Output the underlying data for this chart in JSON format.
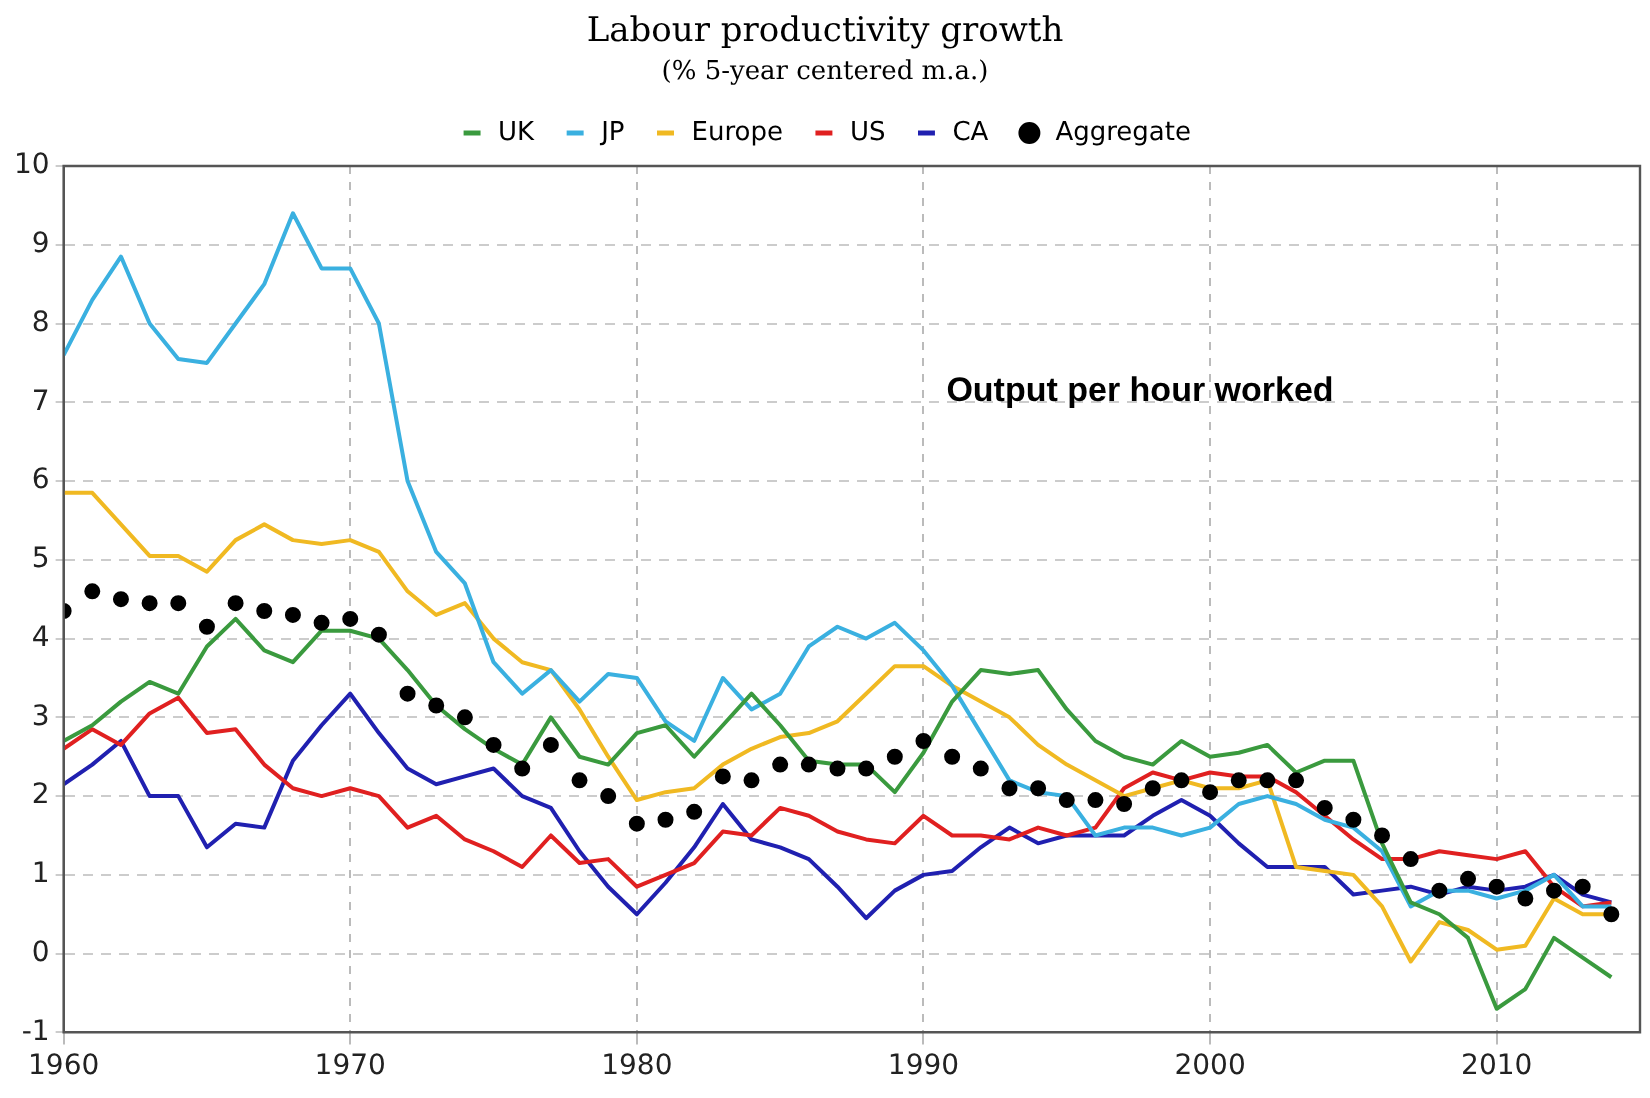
{
  "chart_data": {
    "type": "line",
    "title": "Labour productivity growth",
    "subtitle": "(% 5-year centered m.a.)",
    "annotations": [
      "Output per hour worked"
    ],
    "x": [
      1960,
      1961,
      1962,
      1963,
      1964,
      1965,
      1966,
      1967,
      1968,
      1969,
      1970,
      1971,
      1972,
      1973,
      1974,
      1975,
      1976,
      1977,
      1978,
      1979,
      1980,
      1981,
      1982,
      1983,
      1984,
      1985,
      1986,
      1987,
      1988,
      1989,
      1990,
      1991,
      1992,
      1993,
      1994,
      1995,
      1996,
      1997,
      1998,
      1999,
      2000,
      2001,
      2002,
      2003,
      2004,
      2005,
      2006,
      2007,
      2008,
      2009,
      2010,
      2011,
      2012,
      2013,
      2014
    ],
    "xlim": [
      1960,
      2015
    ],
    "xticks": [
      1960,
      1970,
      1980,
      1990,
      2000,
      2010
    ],
    "ylim": [
      -1,
      10
    ],
    "yticks": [
      -1,
      0,
      1,
      2,
      3,
      4,
      5,
      6,
      7,
      8,
      9,
      10
    ],
    "grid": true,
    "legend": "top",
    "marker": "none",
    "line_style": "solid",
    "series": [
      {
        "name": "UK",
        "color": "#3a9a3e",
        "values": [
          2.7,
          2.9,
          3.2,
          3.45,
          3.3,
          3.9,
          4.25,
          3.85,
          3.7,
          4.1,
          4.1,
          4.0,
          3.6,
          3.15,
          2.85,
          2.6,
          2.4,
          3.0,
          2.5,
          2.4,
          2.8,
          2.9,
          2.5,
          2.9,
          3.3,
          2.9,
          2.45,
          2.4,
          2.4,
          2.05,
          2.55,
          3.2,
          3.6,
          3.55,
          3.6,
          3.1,
          2.7,
          2.5,
          2.4,
          2.7,
          2.5,
          2.55,
          2.65,
          2.3,
          2.45,
          2.45,
          1.4,
          0.65,
          0.5,
          0.2,
          -0.7,
          -0.45,
          0.2,
          -0.05,
          -0.3
        ]
      },
      {
        "name": "JP",
        "color": "#3ab0e0",
        "values": [
          7.6,
          8.3,
          8.85,
          8.0,
          7.55,
          7.5,
          8.0,
          8.5,
          9.4,
          8.7,
          8.7,
          8.0,
          6.0,
          5.1,
          4.7,
          3.7,
          3.3,
          3.6,
          3.2,
          3.55,
          3.5,
          2.95,
          2.7,
          3.5,
          3.1,
          3.3,
          3.9,
          4.15,
          4.0,
          4.2,
          3.85,
          3.4,
          2.8,
          2.2,
          2.05,
          2.0,
          1.5,
          1.6,
          1.6,
          1.5,
          1.6,
          1.9,
          2.0,
          1.9,
          1.7,
          1.6,
          1.3,
          0.6,
          0.8,
          0.8,
          0.7,
          0.8,
          1.0,
          0.6,
          0.6
        ]
      },
      {
        "name": "Europe",
        "color": "#f0b922",
        "values": [
          5.85,
          5.85,
          5.45,
          5.05,
          5.05,
          4.85,
          5.25,
          5.45,
          5.25,
          5.2,
          5.25,
          5.1,
          4.6,
          4.3,
          4.45,
          4.0,
          3.7,
          3.6,
          3.1,
          2.5,
          1.95,
          2.05,
          2.1,
          2.4,
          2.6,
          2.75,
          2.8,
          2.95,
          3.3,
          3.65,
          3.65,
          3.4,
          3.2,
          3.0,
          2.65,
          2.4,
          2.2,
          2.0,
          2.1,
          2.2,
          2.1,
          2.1,
          2.2,
          1.1,
          1.05,
          1.0,
          0.6,
          -0.1,
          0.4,
          0.3,
          0.05,
          0.1,
          0.7,
          0.5,
          0.5
        ]
      },
      {
        "name": "US",
        "color": "#e02020",
        "values": [
          2.6,
          2.85,
          2.65,
          3.05,
          3.25,
          2.8,
          2.85,
          2.4,
          2.1,
          2.0,
          2.1,
          2.0,
          1.6,
          1.75,
          1.45,
          1.3,
          1.1,
          1.5,
          1.15,
          1.2,
          0.85,
          1.0,
          1.15,
          1.55,
          1.5,
          1.85,
          1.75,
          1.55,
          1.45,
          1.4,
          1.75,
          1.5,
          1.5,
          1.45,
          1.6,
          1.5,
          1.6,
          2.1,
          2.3,
          2.2,
          2.3,
          2.25,
          2.25,
          2.05,
          1.75,
          1.45,
          1.2,
          1.2,
          1.3,
          1.25,
          1.2,
          1.3,
          0.85,
          0.6,
          0.65
        ]
      },
      {
        "name": "CA",
        "color": "#2020b0",
        "values": [
          2.15,
          2.4,
          2.7,
          2.0,
          2.0,
          1.35,
          1.65,
          1.6,
          2.45,
          2.9,
          3.3,
          2.8,
          2.35,
          2.15,
          2.25,
          2.35,
          2.0,
          1.85,
          1.3,
          0.85,
          0.5,
          0.9,
          1.35,
          1.9,
          1.45,
          1.35,
          1.2,
          0.85,
          0.45,
          0.8,
          1.0,
          1.05,
          1.35,
          1.6,
          1.4,
          1.5,
          1.5,
          1.5,
          1.75,
          1.95,
          1.75,
          1.4,
          1.1,
          1.1,
          1.1,
          0.75,
          0.8,
          0.85,
          0.75,
          0.85,
          0.8,
          0.85,
          1.0,
          0.75,
          0.65
        ]
      },
      {
        "name": "Aggregate",
        "color": "#000000",
        "type": "scatter",
        "marker": "circle",
        "values": [
          4.35,
          4.6,
          4.5,
          4.45,
          4.45,
          4.15,
          4.45,
          4.35,
          4.3,
          4.2,
          4.25,
          4.05,
          3.3,
          3.15,
          3.0,
          2.65,
          2.35,
          2.65,
          2.2,
          2.0,
          1.65,
          1.7,
          1.8,
          2.25,
          2.2,
          2.4,
          2.4,
          2.35,
          2.35,
          2.5,
          2.7,
          2.5,
          2.35,
          2.1,
          2.1,
          1.95,
          1.95,
          1.9,
          2.1,
          2.2,
          2.05,
          2.2,
          2.2,
          2.2,
          1.85,
          1.7,
          1.5,
          1.2,
          0.8,
          0.95,
          0.85,
          0.7,
          0.8,
          0.85,
          0.5
        ]
      }
    ]
  }
}
